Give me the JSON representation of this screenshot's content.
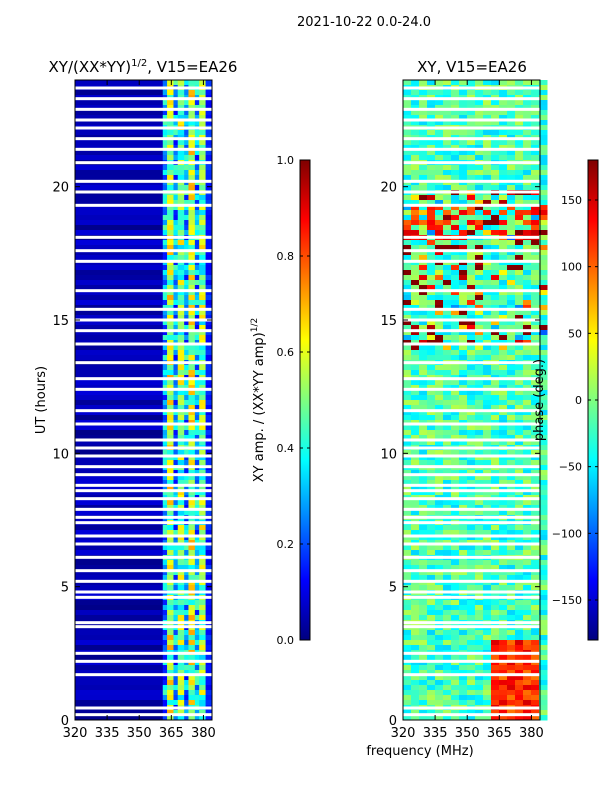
{
  "figure": {
    "suptitle": "2021-10-22 0.0-24.0",
    "xlabel": "frequency (MHz)",
    "ylabel": "UT (hours)"
  },
  "colors": {
    "jet": [
      "#00007f",
      "#0000ff",
      "#007fff",
      "#00ffff",
      "#7fff7f",
      "#ffff00",
      "#ff7f00",
      "#ff0000",
      "#7f0000"
    ],
    "gap": "#ffffff"
  },
  "chart_data": [
    {
      "type": "heatmap",
      "title": "XY/(XX*YY)",
      "title_exp": "1/2",
      "title_suffix": ", V15=EA26",
      "x_ticks": [
        "320",
        "335",
        "350",
        "365",
        "380"
      ],
      "x_tick_values": [
        320,
        335,
        350,
        365,
        380
      ],
      "xlim": [
        320,
        384
      ],
      "y_ticks": [
        "0",
        "5",
        "10",
        "15",
        "20"
      ],
      "y_tick_values": [
        0,
        5,
        10,
        15,
        20
      ],
      "ylim": [
        0,
        24
      ],
      "colorbar": {
        "label": "XY amp. / (XX*YY amp)",
        "label_exp": "1/2",
        "ticks": [
          "0.0",
          "0.2",
          "0.4",
          "0.6",
          "0.8",
          "1.0"
        ],
        "tick_values": [
          0,
          0.2,
          0.4,
          0.6,
          0.8,
          1.0
        ],
        "range": [
          0,
          1
        ]
      },
      "bands": [
        {
          "freq": [
            320,
            361
          ],
          "level": 0.05
        },
        {
          "freq": [
            361,
            363
          ],
          "level": 0.3
        },
        {
          "freq": [
            363,
            366
          ],
          "level": 0.55
        },
        {
          "freq": [
            366,
            368
          ],
          "level": 0.3
        },
        {
          "freq": [
            368,
            371
          ],
          "level": 0.5
        },
        {
          "freq": [
            371,
            373
          ],
          "level": 0.3
        },
        {
          "freq": [
            373,
            376
          ],
          "level": 0.55
        },
        {
          "freq": [
            376,
            378
          ],
          "level": 0.3
        },
        {
          "freq": [
            378,
            381
          ],
          "level": 0.5
        },
        {
          "freq": [
            381,
            384
          ],
          "level": 0.15
        }
      ]
    },
    {
      "type": "heatmap",
      "title": "XY, V15=EA26",
      "x_ticks": [
        "320",
        "335",
        "350",
        "365",
        "380"
      ],
      "x_tick_values": [
        320,
        335,
        350,
        365,
        380
      ],
      "xlim": [
        320,
        384
      ],
      "y_ticks": [
        "0",
        "5",
        "10",
        "15",
        "20"
      ],
      "y_tick_values": [
        0,
        5,
        10,
        15,
        20
      ],
      "ylim": [
        0,
        24
      ],
      "colorbar": {
        "label": "phase (deg.)",
        "ticks": [
          "−150",
          "−100",
          "−50",
          "0",
          "50",
          "100",
          "150"
        ],
        "tick_values": [
          -150,
          -100,
          -50,
          0,
          50,
          100,
          150
        ],
        "range": [
          -180,
          180
        ]
      },
      "dominant_phase_deg": -20,
      "hot_region": {
        "freq": [
          360,
          380
        ],
        "ut": [
          0,
          3
        ],
        "phase_deg": 150
      }
    }
  ],
  "flagged_ut_hours": [
    0.2,
    0.45,
    1.7,
    2.2,
    2.5,
    3.5,
    3.65,
    4.6,
    4.8,
    5.2,
    5.6,
    6.1,
    6.6,
    6.9,
    7.4,
    7.6,
    7.9,
    8.3,
    8.6,
    8.8,
    9.2,
    9.5,
    9.9,
    10.2,
    10.5,
    11.1,
    11.6,
    12.4,
    12.8,
    13.4,
    14.1,
    14.6,
    15.0,
    15.4,
    16.1,
    17.2,
    17.6,
    18.1,
    19.3,
    19.8,
    20.2,
    20.9,
    21.4,
    21.8,
    22.2,
    22.5,
    22.9,
    23.3,
    23.7
  ]
}
